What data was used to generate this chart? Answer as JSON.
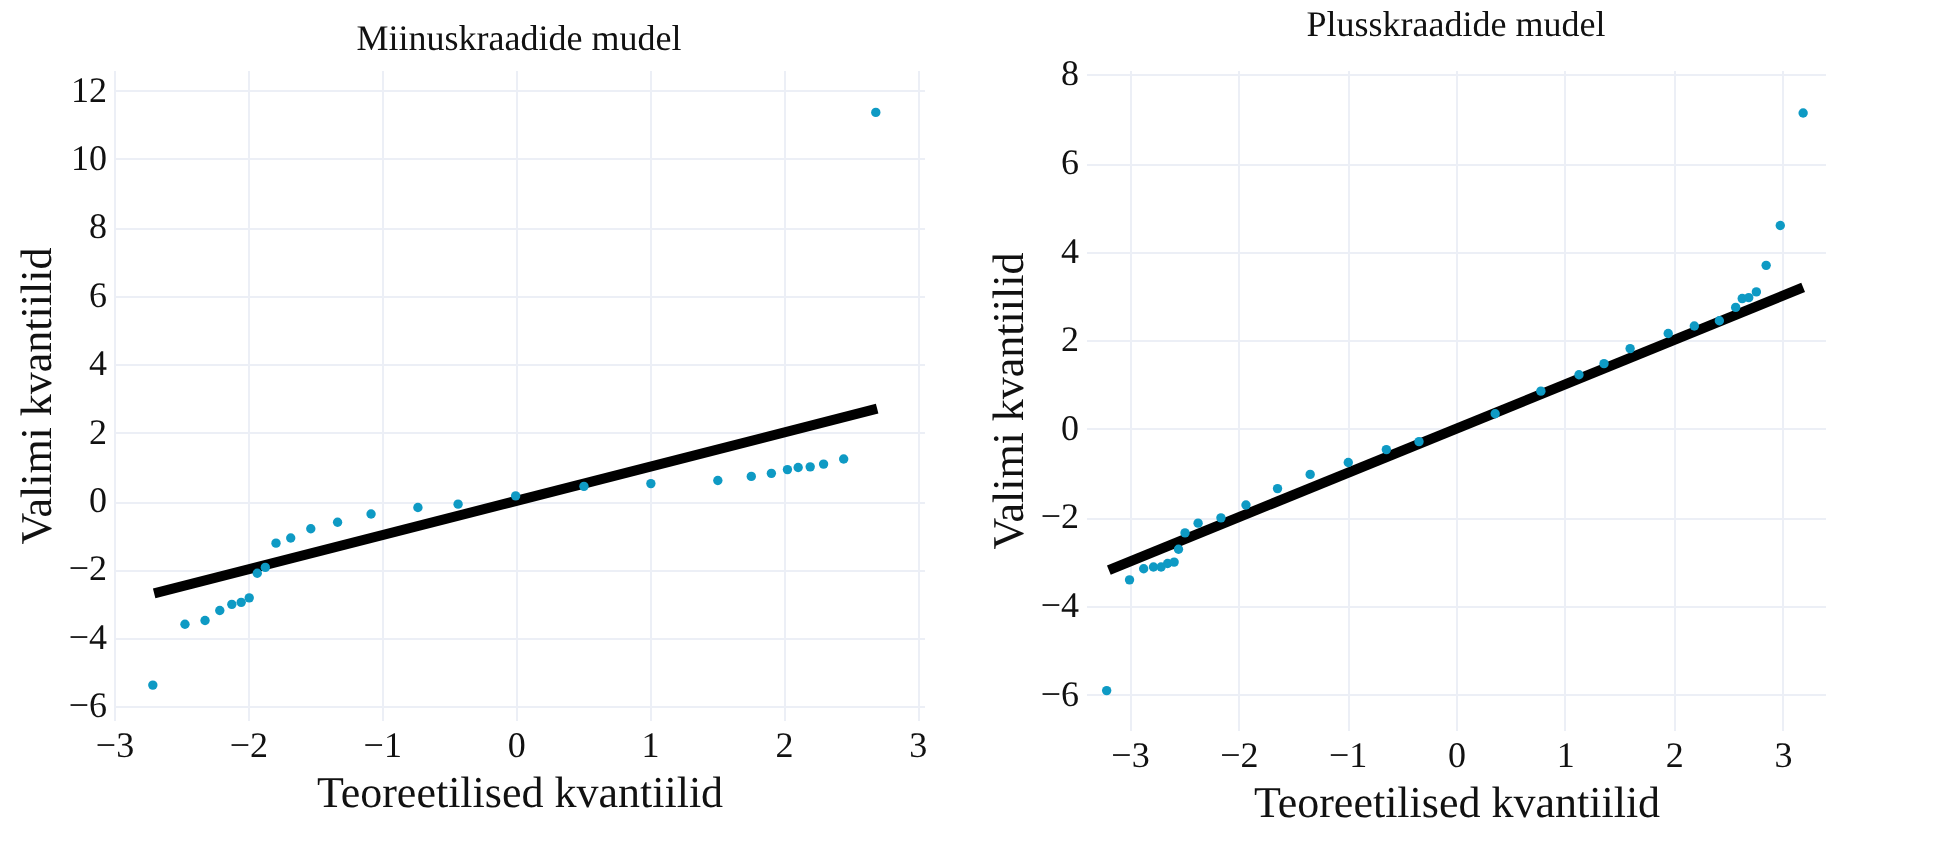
{
  "chart_data": [
    {
      "type": "scatter",
      "title": "Miinuskraadide mudel",
      "xlabel": "Teoreetilised kvantiilid",
      "ylabel": "Valimi kvantiilid",
      "xlim": [
        -3,
        3.05
      ],
      "ylim": [
        -6.4,
        12.6
      ],
      "xticks": [
        -3,
        -2,
        -1,
        0,
        1,
        2,
        3
      ],
      "yticks": [
        -6,
        -4,
        -2,
        0,
        2,
        4,
        6,
        8,
        10,
        12
      ],
      "grid": true,
      "series": [
        {
          "marker": "circle",
          "color": "#0e9ac4",
          "x": [
            -2.71,
            -2.47,
            -2.32,
            -2.21,
            -2.12,
            -2.05,
            -1.99,
            -1.93,
            -1.87,
            -1.79,
            -1.68,
            -1.53,
            -1.33,
            -1.08,
            -0.73,
            -0.43,
            0,
            0.51,
            1.01,
            1.51,
            1.76,
            1.91,
            2.03,
            2.11,
            2.2,
            2.3,
            2.45,
            2.69
          ],
          "values": [
            -5.38,
            -3.6,
            -3.49,
            -3.2,
            -3.02,
            -2.96,
            -2.83,
            -2.11,
            -1.94,
            -1.23,
            -1.08,
            -0.81,
            -0.62,
            -0.38,
            -0.19,
            -0.09,
            0.15,
            0.43,
            0.51,
            0.6,
            0.72,
            0.81,
            0.92,
            0.98,
            1.0,
            1.08,
            1.23,
            11.36
          ]
        },
        {
          "type": "line",
          "color": "#000000",
          "x": [
            -2.7,
            2.7
          ],
          "values": [
            -2.7,
            2.7
          ]
        }
      ]
    },
    {
      "type": "scatter",
      "title": "Plusskraadide mudel",
      "xlabel": "Teoreetilised kvantiilid",
      "ylabel": "Valimi kvantiilid",
      "xlim": [
        -3.4,
        3.4
      ],
      "ylim": [
        -6.8,
        8.1
      ],
      "xticks": [
        -3,
        -2,
        -1,
        0,
        1,
        2,
        3
      ],
      "yticks": [
        -6,
        -4,
        -2,
        0,
        2,
        4,
        6,
        8
      ],
      "grid": true,
      "series": [
        {
          "marker": "circle",
          "color": "#0e9ac4",
          "x": [
            -3.21,
            -3.0,
            -2.87,
            -2.78,
            -2.71,
            -2.65,
            -2.59,
            -2.55,
            -2.49,
            -2.37,
            -2.16,
            -1.93,
            -1.64,
            -1.34,
            -0.99,
            -0.64,
            -0.34,
            0.36,
            0.78,
            1.13,
            1.36,
            1.6,
            1.95,
            2.19,
            2.42,
            2.57,
            2.63,
            2.69,
            2.76,
            2.85,
            2.98,
            3.19
          ],
          "values": [
            -5.91,
            -3.41,
            -3.16,
            -3.12,
            -3.12,
            -3.04,
            -3.01,
            -2.72,
            -2.35,
            -2.13,
            -2.01,
            -1.72,
            -1.35,
            -1.03,
            -0.76,
            -0.47,
            -0.29,
            0.34,
            0.85,
            1.22,
            1.47,
            1.81,
            2.15,
            2.32,
            2.44,
            2.74,
            2.94,
            2.96,
            3.09,
            3.69,
            4.59,
            7.13
          ]
        },
        {
          "type": "line",
          "color": "#000000",
          "x": [
            -3.19,
            3.19
          ],
          "values": [
            -3.19,
            3.19
          ]
        }
      ]
    }
  ]
}
